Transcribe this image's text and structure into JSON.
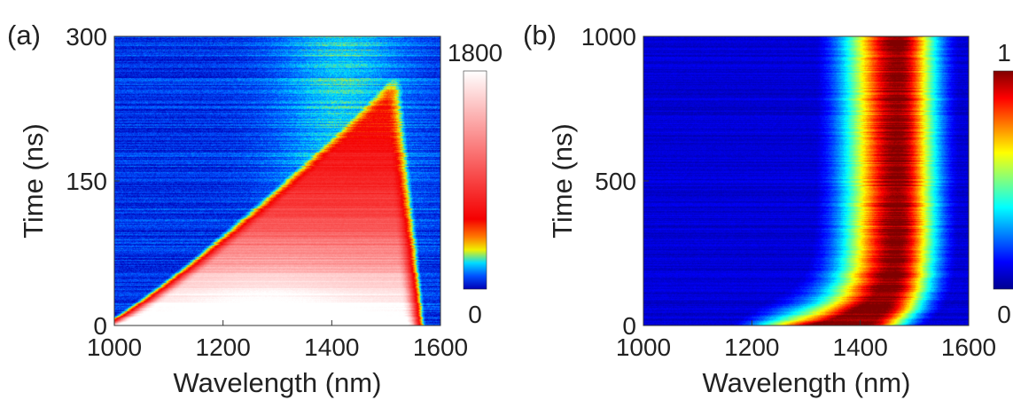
{
  "chart_data": [
    {
      "panel_label": "(a)",
      "type": "heatmap",
      "xlabel": "Wavelength (nm)",
      "ylabel": "Time (ns)",
      "xlim": [
        1000,
        1600
      ],
      "ylim": [
        0,
        300
      ],
      "xticks": [
        "1000",
        "1200",
        "1400",
        "1600"
      ],
      "yticks": [
        "0",
        "150",
        "300"
      ],
      "colorbar": {
        "colormap": "jet-to-white",
        "min_label": "0",
        "max_label": "1800",
        "range": [
          0,
          1800
        ]
      },
      "grid": false,
      "description_data": {
        "peak_time_ns": 15,
        "peak_wavelength_nm": 1280,
        "cutoff_wavelength_nm": 1550
      }
    },
    {
      "panel_label": "(b)",
      "type": "heatmap",
      "xlabel": "Wavelength (nm)",
      "ylabel": "Time (ns)",
      "xlim": [
        1000,
        1600
      ],
      "ylim": [
        0,
        1000
      ],
      "xticks": [
        "1000",
        "1200",
        "1400",
        "1600"
      ],
      "yticks": [
        "0",
        "500",
        "1000"
      ],
      "colorbar": {
        "colormap": "jet",
        "min_label": "0",
        "max_label": "1",
        "range": [
          0,
          1
        ]
      },
      "grid": false,
      "description_data": {
        "peak_wavelength_nm": 1470,
        "band_width_nm": 130
      }
    }
  ]
}
